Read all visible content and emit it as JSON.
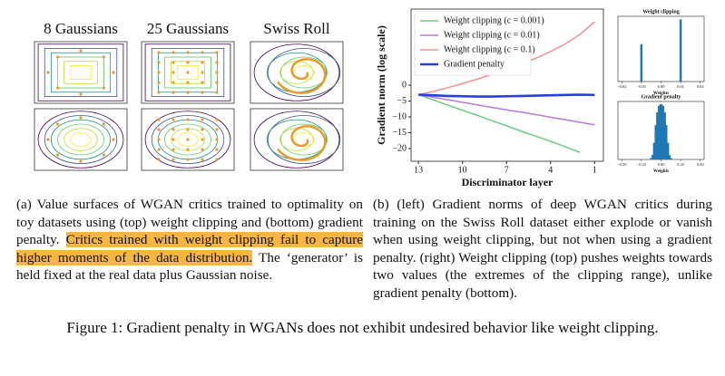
{
  "toy_panel": {
    "titles": [
      "8 Gaussians",
      "25 Gaussians",
      "Swiss Roll"
    ]
  },
  "chart_data": [
    {
      "type": "line",
      "xlabel": "Discriminator layer",
      "ylabel": "Gradient norm (log scale)",
      "x": [
        13,
        12,
        11,
        10,
        9,
        8,
        7,
        6,
        5,
        4,
        3,
        2,
        1
      ],
      "series": [
        {
          "name": "Weight clipping (c = 0.001)",
          "color": "#6acd7c",
          "values": [
            -3,
            -4.6,
            -6.3,
            -7.9,
            -9.5,
            -11.2,
            -12.8,
            -14.5,
            -16.1,
            -17.7,
            -19.4,
            -21.2,
            null
          ]
        },
        {
          "name": "Weight clipping (c = 0.01)",
          "color": "#b57bdb",
          "values": [
            -3,
            -3.8,
            -4.6,
            -5.4,
            -6.2,
            -7,
            -7.8,
            -8.5,
            -9.3,
            -10.1,
            -10.9,
            -11.7,
            -12.5
          ]
        },
        {
          "name": "Weight clipping (c = 0.1)",
          "color": "#f2928e",
          "values": [
            -3,
            -2,
            -0.8,
            0.5,
            1.9,
            3.4,
            5,
            6.7,
            8.5,
            10.6,
            13,
            16,
            20
          ]
        },
        {
          "name": "Gradient penalty",
          "color": "#2a3fd6",
          "values": [
            -3,
            -3.2,
            -3.4,
            -3.5,
            -3.6,
            -3.6,
            -3.5,
            -3.4,
            -3.3,
            -3.2,
            -3.1,
            -3,
            -3.1
          ]
        }
      ],
      "xlim": [
        13.5,
        0.4
      ],
      "xticks": [
        13,
        10,
        7,
        4,
        1
      ],
      "ylim": [
        -24,
        24
      ],
      "yticks": [
        {
          "value": -20,
          "label": "−20"
        },
        {
          "value": -15,
          "label": "−15"
        },
        {
          "value": -10,
          "label": "−10"
        },
        {
          "value": -5,
          "label": "−5"
        },
        0
      ],
      "legend": "upper left"
    },
    {
      "type": "histogram",
      "title": "Weight clipping",
      "xlabel": "Weights",
      "color": "#1f77b4",
      "bins": [
        -0.02,
        -0.0105,
        -0.0095,
        0.0095,
        0.0105,
        0.02
      ],
      "counts": [
        0,
        60,
        0,
        100,
        0
      ],
      "xlim": [
        -0.022,
        0.022
      ],
      "xticks": [
        {
          "value": -0.02,
          "label": "−0.02"
        },
        {
          "value": -0.01,
          "label": "−0.01"
        },
        {
          "value": 0,
          "label": "0.00"
        },
        {
          "value": 0.01,
          "label": "0.01"
        },
        {
          "value": 0.02,
          "label": "0.02"
        }
      ]
    },
    {
      "type": "histogram",
      "title": "Gradient penalty",
      "xlabel": "Weights",
      "color": "#1f77b4",
      "bins": [
        -0.14,
        -0.12,
        -0.1,
        -0.08,
        -0.06,
        -0.04,
        -0.02,
        0,
        0.02,
        0.04,
        0.06,
        0.08,
        0.1,
        0.12,
        0.14
      ],
      "counts": [
        2,
        8,
        30,
        62,
        85,
        97,
        100,
        100,
        97,
        85,
        62,
        30,
        8,
        2
      ],
      "xlim": [
        -0.55,
        0.55
      ],
      "xticks": [
        {
          "value": -0.5,
          "label": "−0.50"
        },
        {
          "value": -0.25,
          "label": "−0.25"
        },
        {
          "value": 0,
          "label": "0.00"
        },
        {
          "value": 0.25,
          "label": "0.25"
        },
        {
          "value": 0.5,
          "label": "0.50"
        }
      ]
    }
  ],
  "captions": {
    "a": [
      "(a) Value surfaces of WGAN critics trained to optimality on toy datasets using (top) weight clipping and (bottom) gradient penalty. ",
      "Critics trained with weight clipping fail to capture higher moments of the data distribution.",
      " The ‘generator’ is held fixed at the real data plus Gaussian noise."
    ],
    "b": "(b) (left) Gradient norms of deep WGAN critics during training on the Swiss Roll dataset either explode or vanish when using weight clipping, but not when using a gradient penalty. (right) Weight clipping (top) pushes weights towards two values (the extremes of the clipping range), unlike gradient penalty (bottom).",
    "figure": "Figure 1: Gradient penalty in WGANs does not exhibit undesired behavior like weight clipping."
  }
}
